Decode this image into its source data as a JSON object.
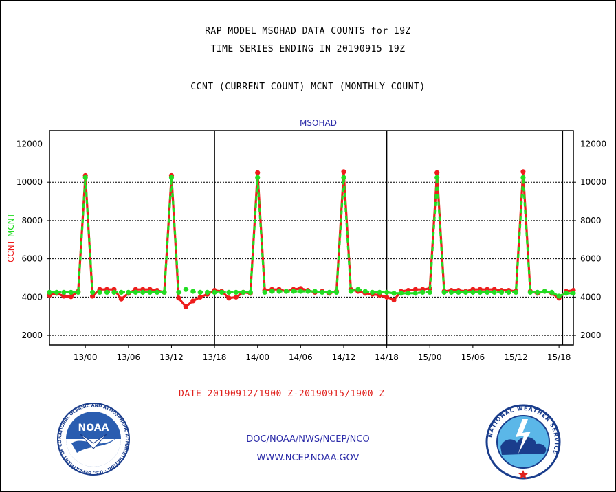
{
  "header": {
    "title_line1": "RAP MODEL MSOHAD DATA COUNTS for 19Z",
    "title_line2": "TIME SERIES ENDING IN 20190915 19Z",
    "subtitle": "CCNT (CURRENT COUNT) MCNT (MONTHLY COUNT)"
  },
  "footer": {
    "date_range": "DATE 20190912/1900 Z-20190915/1900 Z",
    "org_path": "DOC/NOAA/NWS/NCEP/NCO",
    "website": "WWW.NCEP.NOAA.GOV"
  },
  "logos": {
    "noaa_text": "NOAA",
    "noaa_ring": "NATIONAL OCEANIC AND ATMOSPHERIC ADMINISTRATION · U.S. DEPARTMENT OF COMMERCE",
    "nws_ring": "NATIONAL WEATHER SERVICE"
  },
  "colors": {
    "ccnt": "#ee1c1c",
    "mcnt": "#22dd22",
    "axis_text": "#000000",
    "panel_title": "#2a2aa8",
    "date_text": "#e0201c"
  },
  "chart_data": {
    "type": "line",
    "title": "MSOHAD",
    "ylabel_parts": [
      {
        "text": "CCNT",
        "color": "#ee1c1c"
      },
      {
        "text": "MCNT",
        "color": "#22dd22"
      }
    ],
    "xlim": [
      0,
      73
    ],
    "ylim": [
      1500,
      12700
    ],
    "yticks": [
      2000,
      4000,
      6000,
      8000,
      10000,
      12000
    ],
    "xticks": [
      {
        "x": 5,
        "label": "13/00"
      },
      {
        "x": 11,
        "label": "13/06"
      },
      {
        "x": 17,
        "label": "13/12"
      },
      {
        "x": 23,
        "label": "13/18"
      },
      {
        "x": 29,
        "label": "14/00"
      },
      {
        "x": 35,
        "label": "14/06"
      },
      {
        "x": 41,
        "label": "14/12"
      },
      {
        "x": 47,
        "label": "14/18"
      },
      {
        "x": 53,
        "label": "15/00"
      },
      {
        "x": 59,
        "label": "15/06"
      },
      {
        "x": 65,
        "label": "15/12"
      },
      {
        "x": 71,
        "label": "15/18"
      }
    ],
    "day_boundaries": [
      23,
      47,
      71.5
    ],
    "grid": true,
    "series": [
      {
        "name": "CCNT",
        "color": "#ee1c1c",
        "values": [
          4100,
          4200,
          4050,
          4020,
          4300,
          10350,
          4050,
          4400,
          4400,
          4400,
          3900,
          4200,
          4400,
          4400,
          4400,
          4350,
          4250,
          10350,
          3950,
          3500,
          3800,
          4000,
          4150,
          4350,
          4300,
          3950,
          4000,
          4250,
          4200,
          10500,
          4350,
          4400,
          4400,
          4300,
          4400,
          4450,
          4350,
          4250,
          4300,
          4200,
          4300,
          10550,
          4400,
          4300,
          4200,
          4150,
          4100,
          4000,
          3850,
          4300,
          4350,
          4400,
          4400,
          4450,
          10500,
          4300,
          4350,
          4350,
          4300,
          4400,
          4400,
          4400,
          4400,
          4350,
          4350,
          4300,
          10550,
          4300,
          4200,
          4300,
          4200,
          3950,
          4300,
          4350
        ]
      },
      {
        "name": "MCNT",
        "color": "#22dd22",
        "values": [
          4250,
          4250,
          4250,
          4250,
          4250,
          10250,
          4250,
          4250,
          4250,
          4250,
          4250,
          4250,
          4250,
          4250,
          4250,
          4250,
          4250,
          10250,
          4250,
          4400,
          4300,
          4250,
          4250,
          4250,
          4250,
          4250,
          4250,
          4250,
          4250,
          10250,
          4250,
          4300,
          4300,
          4300,
          4300,
          4300,
          4300,
          4300,
          4250,
          4250,
          4250,
          10250,
          4300,
          4400,
          4300,
          4250,
          4250,
          4250,
          4200,
          4200,
          4200,
          4200,
          4250,
          4250,
          10250,
          4250,
          4250,
          4250,
          4250,
          4250,
          4250,
          4250,
          4250,
          4250,
          4250,
          4250,
          10250,
          4250,
          4250,
          4300,
          4250,
          4050,
          4200,
          4200
        ]
      }
    ],
    "right_axis_duplicate": true
  }
}
